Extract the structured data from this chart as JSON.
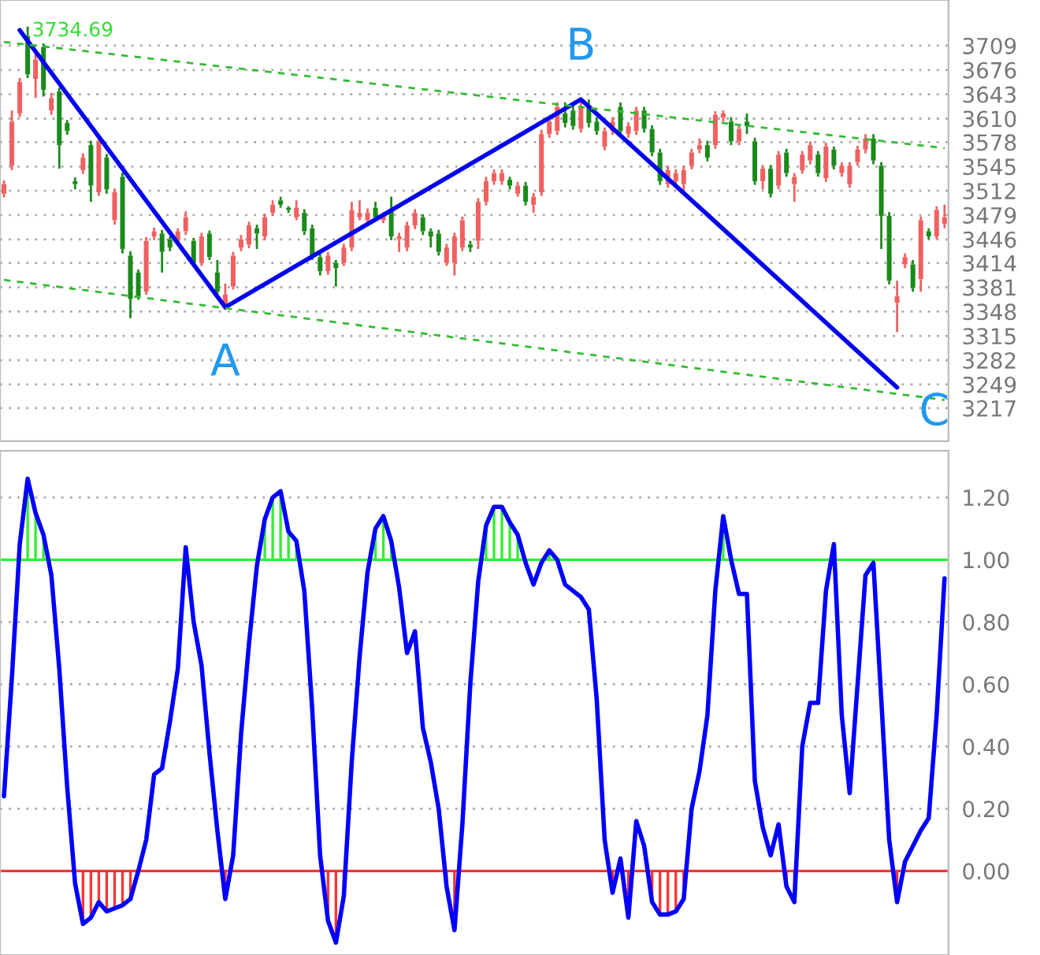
{
  "chart_data": [
    {
      "type": "candlestick",
      "categories": [
        null,
        null,
        null,
        null,
        null,
        null,
        null,
        null,
        null,
        null,
        null,
        null,
        null,
        null,
        null,
        null,
        null,
        null,
        null,
        null,
        null,
        null,
        null,
        null,
        null,
        null,
        null,
        null,
        null,
        null,
        null,
        null,
        null,
        null,
        null,
        null,
        null,
        null,
        null,
        null,
        null,
        null,
        null,
        null,
        null,
        null,
        null,
        null,
        null,
        null,
        null,
        null,
        null,
        null,
        null,
        null,
        null,
        null,
        null,
        null,
        null,
        null,
        null,
        null,
        null,
        null,
        null,
        null,
        null,
        null,
        null,
        null,
        null,
        null,
        null,
        null,
        null,
        null,
        null,
        null,
        null,
        null,
        null,
        null,
        null,
        null,
        null,
        null,
        null,
        null,
        null,
        null,
        null,
        null,
        null,
        null,
        null,
        null,
        null,
        null,
        null,
        null,
        null,
        null,
        null,
        null,
        null,
        null,
        null,
        null,
        null,
        null,
        null,
        null,
        null,
        null,
        null,
        null,
        null,
        null
      ],
      "ohlc": [
        [
          3508,
          3526,
          3503,
          3521
        ],
        [
          3546,
          3621,
          3540,
          3606
        ],
        [
          3617,
          3665,
          3612,
          3660
        ],
        [
          3722,
          3735,
          3665,
          3670
        ],
        [
          3664,
          3698,
          3638,
          3690
        ],
        [
          3707,
          3712,
          3640,
          3649
        ],
        [
          3621,
          3645,
          3615,
          3638
        ],
        [
          3647,
          3652,
          3542,
          3574
        ],
        [
          3604,
          3608,
          3588,
          3593
        ],
        [
          3525,
          3530,
          3514,
          3521
        ],
        [
          3540,
          3563,
          3535,
          3557
        ],
        [
          3574,
          3580,
          3497,
          3519
        ],
        [
          3510,
          3583,
          3505,
          3579
        ],
        [
          3557,
          3562,
          3508,
          3514
        ],
        [
          3472,
          3515,
          3466,
          3510
        ],
        [
          3531,
          3537,
          3427,
          3433
        ],
        [
          3424,
          3430,
          3339,
          3365
        ],
        [
          3401,
          3405,
          3364,
          3369
        ],
        [
          3375,
          3449,
          3371,
          3444
        ],
        [
          3450,
          3462,
          3445,
          3457
        ],
        [
          3454,
          3459,
          3401,
          3429
        ],
        [
          3446,
          3450,
          3430,
          3435
        ],
        [
          3444,
          3461,
          3440,
          3457
        ],
        [
          3457,
          3484,
          3452,
          3476
        ],
        [
          3444,
          3448,
          3410,
          3414
        ],
        [
          3414,
          3455,
          3410,
          3450
        ],
        [
          3454,
          3458,
          3418,
          3422
        ],
        [
          3401,
          3418,
          3370,
          3375
        ],
        [
          3358,
          3386,
          3350,
          3371
        ],
        [
          3382,
          3429,
          3378,
          3424
        ],
        [
          3435,
          3452,
          3430,
          3446
        ],
        [
          3439,
          3470,
          3434,
          3465
        ],
        [
          3461,
          3466,
          3433,
          3454
        ],
        [
          3450,
          3481,
          3445,
          3476
        ],
        [
          3482,
          3499,
          3478,
          3493
        ],
        [
          3499,
          3504,
          3489,
          3493
        ],
        [
          3489,
          3491,
          3482,
          3486
        ],
        [
          3476,
          3499,
          3472,
          3489
        ],
        [
          3482,
          3487,
          3452,
          3457
        ],
        [
          3461,
          3466,
          3418,
          3422
        ],
        [
          3422,
          3427,
          3397,
          3403
        ],
        [
          3403,
          3429,
          3398,
          3424
        ],
        [
          3414,
          3418,
          3382,
          3407
        ],
        [
          3414,
          3440,
          3410,
          3435
        ],
        [
          3435,
          3497,
          3430,
          3486
        ],
        [
          3476,
          3499,
          3472,
          3482
        ],
        [
          3472,
          3488,
          3467,
          3482
        ],
        [
          3489,
          3497,
          3471,
          3476
        ],
        [
          3472,
          3483,
          3468,
          3478
        ],
        [
          3486,
          3504,
          3445,
          3450
        ],
        [
          3446,
          3455,
          3429,
          3450
        ],
        [
          3435,
          3470,
          3430,
          3465
        ],
        [
          3465,
          3487,
          3460,
          3482
        ],
        [
          3476,
          3480,
          3452,
          3457
        ],
        [
          3457,
          3461,
          3435,
          3450
        ],
        [
          3454,
          3459,
          3424,
          3429
        ],
        [
          3414,
          3440,
          3410,
          3435
        ],
        [
          3414,
          3455,
          3397,
          3450
        ],
        [
          3435,
          3477,
          3430,
          3472
        ],
        [
          3439,
          3444,
          3429,
          3435
        ],
        [
          3444,
          3502,
          3433,
          3497
        ],
        [
          3497,
          3531,
          3492,
          3525
        ],
        [
          3525,
          3541,
          3520,
          3536
        ],
        [
          3525,
          3541,
          3520,
          3536
        ],
        [
          3527,
          3531,
          3514,
          3519
        ],
        [
          3508,
          3524,
          3504,
          3519
        ],
        [
          3519,
          3524,
          3492,
          3497
        ],
        [
          3493,
          3509,
          3482,
          3504
        ],
        [
          3510,
          3595,
          3505,
          3589
        ],
        [
          3589,
          3612,
          3584,
          3606
        ],
        [
          3593,
          3632,
          3588,
          3626
        ],
        [
          3617,
          3632,
          3598,
          3604
        ],
        [
          3621,
          3628,
          3595,
          3600
        ],
        [
          3596,
          3638,
          3591,
          3626
        ],
        [
          3628,
          3636,
          3598,
          3604
        ],
        [
          3606,
          3612,
          3588,
          3593
        ],
        [
          3572,
          3598,
          3567,
          3593
        ],
        [
          3593,
          3612,
          3588,
          3606
        ],
        [
          3626,
          3632,
          3588,
          3593
        ],
        [
          3589,
          3605,
          3584,
          3600
        ],
        [
          3593,
          3626,
          3588,
          3621
        ],
        [
          3621,
          3626,
          3591,
          3596
        ],
        [
          3596,
          3601,
          3559,
          3564
        ],
        [
          3564,
          3569,
          3520,
          3525
        ],
        [
          3521,
          3546,
          3516,
          3540
        ],
        [
          3525,
          3541,
          3520,
          3536
        ],
        [
          3521,
          3546,
          3512,
          3540
        ],
        [
          3546,
          3569,
          3541,
          3564
        ],
        [
          3568,
          3583,
          3563,
          3574
        ],
        [
          3574,
          3580,
          3552,
          3557
        ],
        [
          3574,
          3620,
          3569,
          3615
        ],
        [
          3611,
          3621,
          3606,
          3617
        ],
        [
          3606,
          3612,
          3574,
          3579
        ],
        [
          3579,
          3601,
          3574,
          3596
        ],
        [
          3606,
          3617,
          3589,
          3600
        ],
        [
          3579,
          3584,
          3520,
          3525
        ],
        [
          3525,
          3547,
          3514,
          3542
        ],
        [
          3542,
          3547,
          3503,
          3508
        ],
        [
          3519,
          3566,
          3514,
          3561
        ],
        [
          3564,
          3569,
          3531,
          3536
        ],
        [
          3521,
          3536,
          3497,
          3531
        ],
        [
          3540,
          3566,
          3535,
          3561
        ],
        [
          3553,
          3579,
          3548,
          3574
        ],
        [
          3561,
          3566,
          3531,
          3536
        ],
        [
          3529,
          3577,
          3524,
          3572
        ],
        [
          3568,
          3572,
          3541,
          3546
        ],
        [
          3536,
          3551,
          3531,
          3546
        ],
        [
          3521,
          3551,
          3516,
          3546
        ],
        [
          3551,
          3573,
          3546,
          3568
        ],
        [
          3568,
          3589,
          3563,
          3583
        ],
        [
          3583,
          3589,
          3548,
          3553
        ],
        [
          3546,
          3551,
          3433,
          3478
        ],
        [
          3478,
          3483,
          3385,
          3390
        ],
        [
          3360,
          3390,
          3320,
          3369
        ],
        [
          3412,
          3427,
          3407,
          3422
        ],
        [
          3412,
          3418,
          3375,
          3380
        ],
        [
          3392,
          3477,
          3375,
          3472
        ],
        [
          3457,
          3461,
          3446,
          3450
        ],
        [
          3450,
          3491,
          3446,
          3486
        ],
        [
          3467,
          3493,
          3461,
          3476
        ]
      ],
      "series": [
        {
          "type": "line",
          "color": "#0000ee",
          "values": [
            null,
            null,
            3730,
            null,
            null,
            null,
            null,
            null,
            null,
            null,
            null,
            null,
            null,
            null,
            null,
            null,
            null,
            null,
            null,
            null,
            null,
            null,
            null,
            null,
            null,
            null,
            null,
            null,
            3354,
            null,
            null,
            null,
            null,
            null,
            null,
            null,
            null,
            null,
            null,
            null,
            null,
            null,
            null,
            null,
            null,
            null,
            null,
            null,
            null,
            null,
            null,
            null,
            null,
            null,
            null,
            null,
            null,
            null,
            null,
            null,
            null,
            null,
            null,
            null,
            null,
            null,
            null,
            null,
            null,
            null,
            null,
            null,
            null,
            3636,
            null,
            null,
            null,
            null,
            null,
            null,
            null,
            null,
            null,
            null,
            null,
            null,
            null,
            null,
            null,
            null,
            null,
            null,
            null,
            null,
            null,
            null,
            null,
            null,
            null,
            null,
            null,
            null,
            null,
            null,
            null,
            null,
            null,
            null,
            null,
            null,
            null,
            null,
            null,
            3245,
            null,
            null,
            null,
            null,
            null,
            null
          ]
        },
        {
          "type": "line",
          "color": "#33bb33",
          "line_style": "dashed",
          "values": [
            3714,
            null,
            null,
            null,
            null,
            null,
            null,
            null,
            null,
            null,
            null,
            null,
            null,
            null,
            null,
            null,
            null,
            null,
            null,
            null,
            null,
            null,
            null,
            null,
            null,
            null,
            null,
            null,
            null,
            null,
            null,
            null,
            null,
            null,
            null,
            null,
            null,
            null,
            null,
            null,
            null,
            null,
            null,
            null,
            null,
            null,
            null,
            null,
            null,
            null,
            null,
            null,
            null,
            null,
            null,
            null,
            null,
            null,
            null,
            null,
            null,
            null,
            null,
            null,
            null,
            null,
            null,
            null,
            null,
            null,
            null,
            null,
            null,
            null,
            null,
            null,
            null,
            null,
            null,
            null,
            null,
            null,
            null,
            null,
            null,
            null,
            null,
            null,
            null,
            null,
            null,
            null,
            null,
            null,
            null,
            null,
            null,
            null,
            null,
            null,
            null,
            null,
            null,
            null,
            null,
            null,
            null,
            null,
            null,
            null,
            null,
            null,
            null,
            null,
            null,
            null,
            null,
            null,
            null,
            3570
          ]
        },
        {
          "type": "line",
          "color": "#33bb33",
          "line_style": "dashed",
          "values": [
            3391,
            null,
            null,
            null,
            null,
            null,
            null,
            null,
            null,
            null,
            null,
            null,
            null,
            null,
            null,
            null,
            null,
            null,
            null,
            null,
            null,
            null,
            null,
            null,
            null,
            null,
            null,
            null,
            null,
            null,
            null,
            null,
            null,
            null,
            null,
            null,
            null,
            null,
            null,
            null,
            null,
            null,
            null,
            null,
            null,
            null,
            null,
            null,
            null,
            null,
            null,
            null,
            null,
            null,
            null,
            null,
            null,
            null,
            null,
            null,
            null,
            null,
            null,
            null,
            null,
            null,
            null,
            null,
            null,
            null,
            null,
            null,
            null,
            null,
            null,
            null,
            null,
            null,
            null,
            null,
            null,
            null,
            null,
            null,
            null,
            null,
            null,
            null,
            null,
            null,
            null,
            null,
            null,
            null,
            null,
            null,
            null,
            null,
            null,
            null,
            null,
            null,
            null,
            null,
            null,
            null,
            null,
            null,
            null,
            null,
            null,
            null,
            null,
            null,
            null,
            null,
            null,
            null,
            null,
            3228
          ]
        }
      ],
      "annotations": [
        "3734.69",
        "A",
        "B",
        "C"
      ],
      "ylim": [
        3172,
        3771
      ],
      "yticks": [
        3217,
        3249,
        3282,
        3315,
        3348,
        3381,
        3414,
        3446,
        3479,
        3512,
        3545,
        3578,
        3610,
        3643,
        3676,
        3709
      ],
      "grid": "y",
      "tick_labels": "y"
    },
    {
      "type": "line",
      "categories": [
        null,
        null,
        null,
        null,
        null,
        null,
        null,
        null,
        null,
        null,
        null,
        null,
        null,
        null,
        null,
        null,
        null,
        null,
        null,
        null,
        null,
        null,
        null,
        null,
        null,
        null,
        null,
        null,
        null,
        null,
        null,
        null,
        null,
        null,
        null,
        null,
        null,
        null,
        null,
        null,
        null,
        null,
        null,
        null,
        null,
        null,
        null,
        null,
        null,
        null,
        null,
        null,
        null,
        null,
        null,
        null,
        null,
        null,
        null,
        null,
        null,
        null,
        null,
        null,
        null,
        null,
        null,
        null,
        null,
        null,
        null,
        null,
        null,
        null,
        null,
        null,
        null,
        null,
        null,
        null,
        null,
        null,
        null,
        null,
        null,
        null,
        null,
        null,
        null,
        null,
        null,
        null,
        null,
        null,
        null,
        null,
        null,
        null,
        null,
        null,
        null,
        null,
        null,
        null,
        null,
        null,
        null,
        null,
        null,
        null,
        null,
        null,
        null,
        null,
        null,
        null,
        null,
        null,
        null,
        null
      ],
      "series": [
        {
          "color": "#0000ff",
          "values": [
            0.24,
            0.62,
            1.05,
            1.26,
            1.15,
            1.08,
            0.95,
            0.65,
            0.27,
            -0.04,
            -0.17,
            -0.15,
            -0.1,
            -0.13,
            -0.12,
            -0.11,
            -0.09,
            0.0,
            0.1,
            0.31,
            0.33,
            0.48,
            0.65,
            1.04,
            0.8,
            0.66,
            0.38,
            0.13,
            -0.09,
            0.05,
            0.44,
            0.73,
            0.98,
            1.13,
            1.2,
            1.22,
            1.09,
            1.06,
            0.9,
            0.52,
            0.05,
            -0.16,
            -0.23,
            -0.08,
            0.35,
            0.69,
            0.96,
            1.1,
            1.14,
            1.06,
            0.91,
            0.7,
            0.77,
            0.46,
            0.35,
            0.2,
            -0.05,
            -0.19,
            0.15,
            0.6,
            0.93,
            1.11,
            1.17,
            1.17,
            1.12,
            1.08,
            0.99,
            0.92,
            0.99,
            1.03,
            1.0,
            0.92,
            0.9,
            0.88,
            0.84,
            0.55,
            0.1,
            -0.07,
            0.04,
            -0.15,
            0.16,
            0.08,
            -0.1,
            -0.14,
            -0.14,
            -0.13,
            -0.09,
            0.2,
            0.32,
            0.5,
            0.9,
            1.14,
            1.0,
            0.89,
            0.89,
            0.29,
            0.14,
            0.05,
            0.15,
            -0.05,
            -0.1,
            0.4,
            0.54,
            0.54,
            0.9,
            1.05,
            0.5,
            0.25,
            0.6,
            0.95,
            0.99,
            0.55,
            0.1,
            -0.1,
            0.03,
            0.08,
            0.13,
            0.17,
            0.5,
            0.94
          ]
        }
      ],
      "ref_lines": [
        {
          "axis": "y",
          "value": 1,
          "color": "#33ee33"
        },
        {
          "axis": "y",
          "value": 0,
          "color": "#ff3333"
        }
      ],
      "ylim": [
        -0.27,
        1.35
      ],
      "yticks": [
        {
          "value": 0,
          "label": "0.00"
        },
        {
          "value": 0.2,
          "label": "0.20"
        },
        {
          "value": 0.4,
          "label": "0.40"
        },
        {
          "value": 0.6,
          "label": "0.60"
        },
        {
          "value": 0.8,
          "label": "0.80"
        },
        {
          "value": 1.0,
          "label": "1.00"
        },
        {
          "value": 1.2,
          "label": "1.20"
        }
      ],
      "grid": "y",
      "tick_labels": "y"
    }
  ]
}
